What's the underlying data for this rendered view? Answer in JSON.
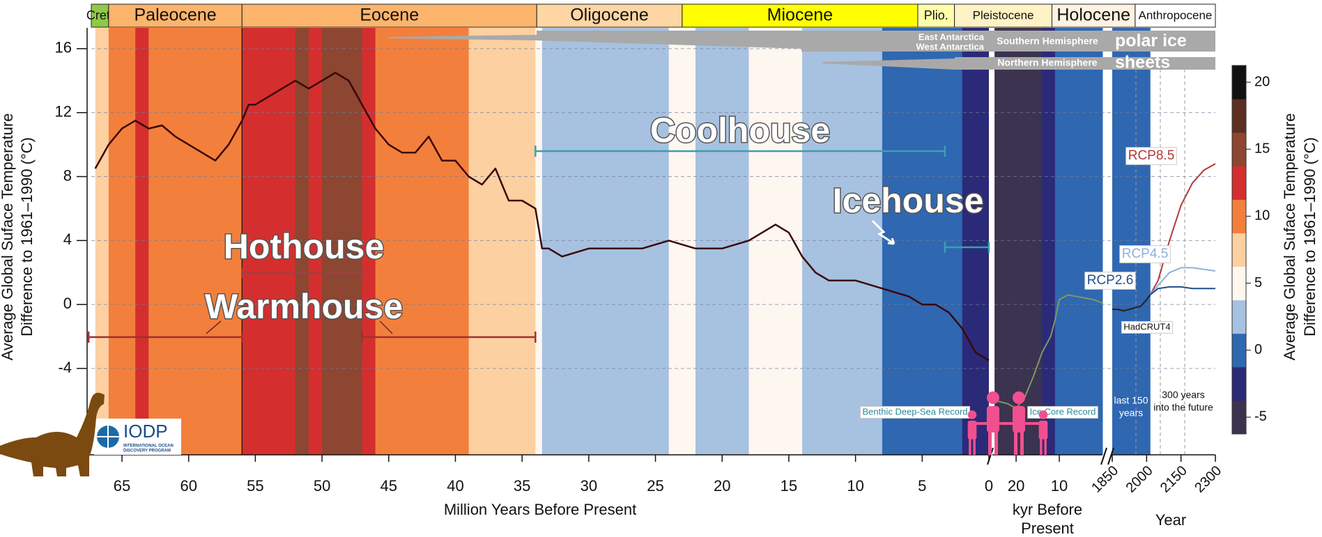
{
  "chart_data": {
    "type": "line",
    "ylabel": [
      "Average Global Suface Temperature",
      "Difference to 1961–1990 (°C)"
    ],
    "ylim": [
      -9.4,
      17.3
    ],
    "yticks": [
      -4,
      0,
      4,
      8,
      12,
      16
    ],
    "grid": true,
    "panels": [
      {
        "xlabel": "Million Years Before Present",
        "xlim": [
          67.3,
          0
        ],
        "xticks": [
          65,
          60,
          55,
          50,
          45,
          40,
          35,
          30,
          25,
          20,
          15,
          10,
          5,
          0
        ],
        "series": [
          {
            "name": "Benthic Deep-Sea Record",
            "color": "#3a0808",
            "x": [
              67,
              66,
              65,
              64,
              63,
              62,
              61,
              60,
              59,
              58,
              57,
              56,
              55.5,
              55,
              54,
              53,
              52,
              51,
              50,
              49,
              48,
              47,
              46,
              45,
              44,
              43,
              42,
              41,
              40,
              39,
              38,
              37,
              36,
              35,
              34,
              33.5,
              33,
              32,
              30,
              28,
              26,
              24,
              22,
              20,
              18,
              17,
              16,
              15,
              14,
              13,
              12,
              10,
              8,
              6,
              5,
              4,
              3,
              2,
              1,
              0
            ],
            "values": [
              8.5,
              10,
              11,
              11.5,
              11,
              11.2,
              10.5,
              10,
              9.5,
              9,
              10,
              11.5,
              12.5,
              12.5,
              13,
              13.5,
              14,
              13.5,
              14,
              14.5,
              14,
              12.5,
              11,
              10,
              9.5,
              9.5,
              10.5,
              9,
              9,
              8,
              7.5,
              8.5,
              6.5,
              6.5,
              6,
              3.5,
              3.5,
              3,
              3.5,
              3.5,
              3.5,
              4,
              3.5,
              3.5,
              4,
              4.5,
              5,
              4.5,
              3,
              2,
              1.5,
              1.5,
              1,
              0.5,
              0,
              0,
              -0.5,
              -1.5,
              -3,
              -3.5
            ]
          }
        ]
      },
      {
        "xlabel": [
          "kyr Before",
          "Present"
        ],
        "xlim": [
          25.5,
          0
        ],
        "xticks": [
          20,
          10
        ],
        "series": [
          {
            "name": "Ice Core Record",
            "color": "#7d9a5e",
            "x": [
              25,
              22,
              20,
              18,
              16,
              14,
              12,
              11,
              10,
              8,
              6,
              4,
              2,
              0
            ],
            "values": [
              -6,
              -6.2,
              -6.5,
              -5.8,
              -4.5,
              -3,
              -2,
              -1,
              0.3,
              0.6,
              0.5,
              0.4,
              0.3,
              0.1
            ]
          }
        ]
      },
      {
        "xlabel": "Year",
        "xlim": [
          1850,
          2300
        ],
        "xticks": [
          1850,
          2000,
          2150,
          2300
        ],
        "series": [
          {
            "name": "HadCRUT4",
            "color": "#222222",
            "x": [
              1850,
              1875,
              1900,
              1925,
              1950,
              1975,
              2000,
              2015
            ],
            "values": [
              -0.3,
              -0.3,
              -0.4,
              -0.3,
              -0.2,
              -0.1,
              0.3,
              0.6
            ]
          },
          {
            "name": "RCP8.5",
            "color": "#b03a3a",
            "x": [
              2015,
              2050,
              2100,
              2150,
              2200,
              2250,
              2300
            ],
            "values": [
              0.6,
              1.5,
              4,
              6.2,
              7.6,
              8.4,
              8.8
            ]
          },
          {
            "name": "RCP4.5",
            "color": "#8fb0d8",
            "x": [
              2015,
              2050,
              2100,
              2150,
              2200,
              2250,
              2300
            ],
            "values": [
              0.6,
              1.2,
              2,
              2.3,
              2.3,
              2.2,
              2.1
            ]
          },
          {
            "name": "RCP2.6",
            "color": "#1f4e8c",
            "x": [
              2015,
              2050,
              2100,
              2150,
              2200,
              2250,
              2300
            ],
            "values": [
              0.6,
              1,
              1.1,
              1.1,
              1,
              1,
              1
            ]
          }
        ]
      }
    ],
    "colorbar": {
      "lim": [
        -6.25,
        21.25
      ],
      "ticks": [
        -5,
        0,
        5,
        10,
        15,
        20
      ],
      "colors": [
        "#3b3350",
        "#2b2a78",
        "#2f67b1",
        "#a7c1e0",
        "#fdf7f0",
        "#fcd0a0",
        "#f37f3c",
        "#d42f2e",
        "#8c4631",
        "#5b2f22",
        "#111111"
      ]
    },
    "epochs": [
      {
        "name": "Cret.",
        "color": "#8fc84a",
        "start_ma": 67.3,
        "end_ma": 66
      },
      {
        "name": "Paleocene",
        "color": "#fdb46c",
        "start_ma": 66,
        "end_ma": 56
      },
      {
        "name": "Eocene",
        "color": "#fdb46c",
        "start_ma": 56,
        "end_ma": 33.9
      },
      {
        "name": "Oligocene",
        "color": "#fed6a4",
        "start_ma": 33.9,
        "end_ma": 23
      },
      {
        "name": "Miocene",
        "color": "#ffff00",
        "start_ma": 23,
        "end_ma": 5.33
      },
      {
        "name": "Plio.",
        "color": "#ffffaa",
        "start_ma": 5.33,
        "end_ma": 2.58
      },
      {
        "name": "Pleistocene",
        "color": "#fff2c4",
        "start_ma": 2.58,
        "end_kyr": 11.7
      },
      {
        "name": "Holocene",
        "color": "#fef2e0",
        "start_kyr": 11.7,
        "end_year": 1950
      },
      {
        "name": "Anthropocene",
        "color": "#ffffff",
        "start_year": 1950,
        "end_year": 2300
      }
    ],
    "states": [
      {
        "name": "Hothouse",
        "color": "#a04040",
        "spans": [
          [
            56,
            47
          ]
        ]
      },
      {
        "name": "Warmhouse",
        "color": "#a03030",
        "spans": [
          [
            67.5,
            56
          ],
          [
            47,
            34
          ]
        ]
      },
      {
        "name": "Coolhouse",
        "color": "#3aa0b0",
        "spans": [
          [
            34,
            3.3
          ]
        ]
      },
      {
        "name": "Icehouse",
        "color": "#3aa0b0",
        "spans": [
          [
            3.3,
            0
          ]
        ]
      }
    ],
    "ice_sheets": {
      "east": "East Antarctica",
      "west": "West Antarctica",
      "south": "Southern Hemisphere",
      "north": "Northern Hemisphere",
      "title": [
        "polar ice",
        "sheets"
      ]
    },
    "notes": {
      "past": [
        "last 150",
        "years"
      ],
      "future": [
        "300 years",
        "into the future"
      ]
    },
    "iodp": {
      "name": "IODP",
      "subtitle": [
        "INTERNATIONAL OCEAN",
        "DISCOVERY PROGRAM"
      ]
    }
  }
}
